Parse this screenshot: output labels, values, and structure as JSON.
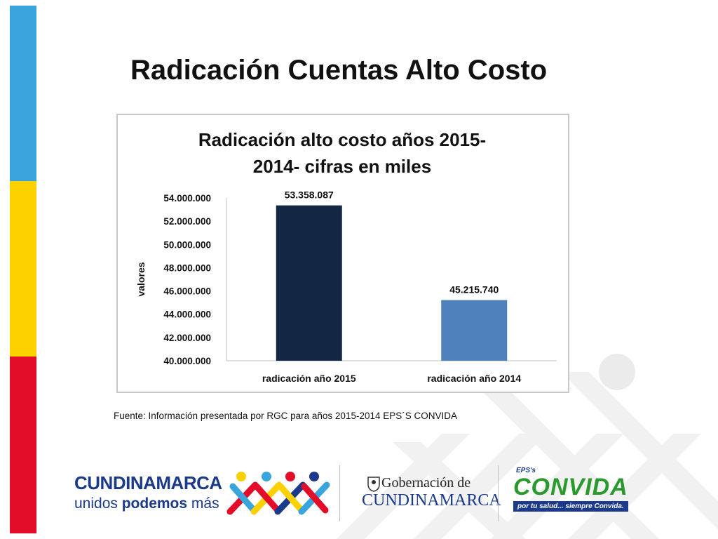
{
  "slide": {
    "title": "Radicación Cuentas Alto Costo",
    "source": "Fuente: Información presentada por RGC para años 2015-2014 EPS´S CONVIDA"
  },
  "chart_data": {
    "type": "bar",
    "title_line1": "Radicación alto costo años 2015-",
    "title_line2": "2014- cifras en miles",
    "ylabel": "valores",
    "xlabel": "",
    "categories": [
      "radicación año 2015",
      "radicación año 2014"
    ],
    "values": [
      53358087,
      45215740
    ],
    "data_labels": [
      "53.358.087",
      "45.215.740"
    ],
    "ylim": [
      40000000,
      54000000
    ],
    "yticks": [
      40000000,
      42000000,
      44000000,
      46000000,
      48000000,
      50000000,
      52000000,
      54000000
    ],
    "ytick_labels": [
      "40.000.000",
      "42.000.000",
      "44.000.000",
      "46.000.000",
      "48.000.000",
      "50.000.000",
      "52.000.000",
      "54.000.000"
    ],
    "bar_colors": [
      "#132744",
      "#4f81bd"
    ],
    "grid": false,
    "legend": "none"
  },
  "footer": {
    "cundinamarca_brand": "CUNDINAMARCA",
    "cundinamarca_tag_pre": "unidos ",
    "cundinamarca_tag_bold": "podemos",
    "cundinamarca_tag_post": " más",
    "gob_line1": "Gobernación de",
    "gob_line2": "CUNDINAMARCA",
    "eps_label": "EPS's",
    "convida_name": "CONVIDA",
    "convida_slogan": "por tu salud... siempre Convida."
  },
  "colors": {
    "stripe_blue": "#3aa4dc",
    "stripe_yellow": "#fdd000",
    "stripe_red": "#e30d2a",
    "brand_blue": "#1b3a8c",
    "brand_green": "#2a9a2f"
  }
}
